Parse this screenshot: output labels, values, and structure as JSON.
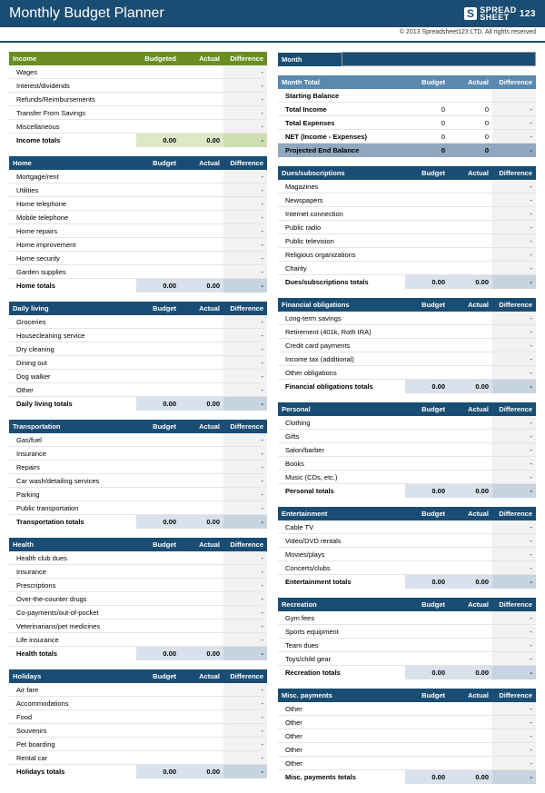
{
  "header": {
    "title": "Monthly Budget Planner",
    "logo_brand": "SPREAD\nSHEET",
    "logo_num": "123",
    "copyright": "© 2013 Spreadsheet123 LTD. All rights reserved"
  },
  "labels": {
    "budgeted": "Budgeted",
    "budget": "Budget",
    "actual": "Actual",
    "difference": "Difference",
    "month": "Month",
    "month_total": "Month Total"
  },
  "zero": "0",
  "dash": "-",
  "zz": "0.00",
  "left_sections": [
    {
      "name": "Income",
      "green": true,
      "h_budget": "Budgeted",
      "rows": [
        "Wages",
        "Interest/dividends",
        "Refunds/Reimbursements",
        "Transfer From Savings",
        "Miscellaneous"
      ],
      "totals": "Income totals"
    },
    {
      "name": "Home",
      "rows": [
        "Mortgage/rent",
        "Utilities",
        "Home telephone",
        "Mobile telephone",
        "Home repairs",
        "Home improvement",
        "Home security",
        "Garden supplies"
      ],
      "totals": "Home totals"
    },
    {
      "name": "Daily living",
      "rows": [
        "Groceries",
        "Housecleaning service",
        "Dry cleaning",
        "Dining out",
        "Dog walker",
        "Other"
      ],
      "totals": "Daily living totals"
    },
    {
      "name": "Transportation",
      "rows": [
        "Gas/fuel",
        "Insurance",
        "Repairs",
        "Car wash/detailing services",
        "Parking",
        "Public transportation"
      ],
      "totals": "Transportation totals"
    },
    {
      "name": "Health",
      "rows": [
        "Health club dues",
        "Insurance",
        "Prescriptions",
        "Over-the-counter drugs",
        "Co-payments/out-of-pocket",
        "Veterinarians/pet medicines",
        "Life insurance"
      ],
      "totals": "Health totals"
    },
    {
      "name": "Holidays",
      "rows": [
        "Air fare",
        "Accommodations",
        "Food",
        "Souvenirs",
        "Pet boarding",
        "Rental car"
      ],
      "totals": "Holidays totals"
    }
  ],
  "summary_rows": [
    {
      "label": "Starting Balance",
      "b": "",
      "a": "",
      "d": ""
    },
    {
      "label": "Total Income",
      "b": "0",
      "a": "0",
      "d": "-"
    },
    {
      "label": "Total Expenses",
      "b": "0",
      "a": "0",
      "d": "-"
    },
    {
      "label": "NET (Income - Expenses)",
      "b": "0",
      "a": "0",
      "d": "-"
    }
  ],
  "projected": {
    "label": "Projected End Balance",
    "b": "0",
    "a": "0",
    "d": "-"
  },
  "right_sections": [
    {
      "name": "Dues/subscriptions",
      "rows": [
        "Magazines",
        "Newspapers",
        "Internet connection",
        "Public radio",
        "Public television",
        "Religious organizations",
        "Charity"
      ],
      "totals": "Dues/subscriptions totals"
    },
    {
      "name": "Financial obligations",
      "rows": [
        "Long-term savings",
        "Retirement (401k, Roth IRA)",
        "Credit card payments",
        "Income tax (additional)",
        "Other obligations"
      ],
      "totals": "Financial obligations totals"
    },
    {
      "name": "Personal",
      "rows": [
        "Clothing",
        "Gifts",
        "Salon/barber",
        "Books",
        "Music (CDs, etc.)"
      ],
      "totals": "Personal totals"
    },
    {
      "name": "Entertainment",
      "rows": [
        "Cable TV",
        "Video/DVD rentals",
        "Movies/plays",
        "Concerts/clubs"
      ],
      "totals": "Entertainment totals"
    },
    {
      "name": "Recreation",
      "rows": [
        "Gym fees",
        "Sports equipment",
        "Team dues",
        "Toys/child gear"
      ],
      "totals": "Recreation totals"
    },
    {
      "name": "Misc. payments",
      "rows": [
        "Other",
        "Other",
        "Other",
        "Other",
        "Other"
      ],
      "totals": "Misc. payments totals"
    }
  ]
}
